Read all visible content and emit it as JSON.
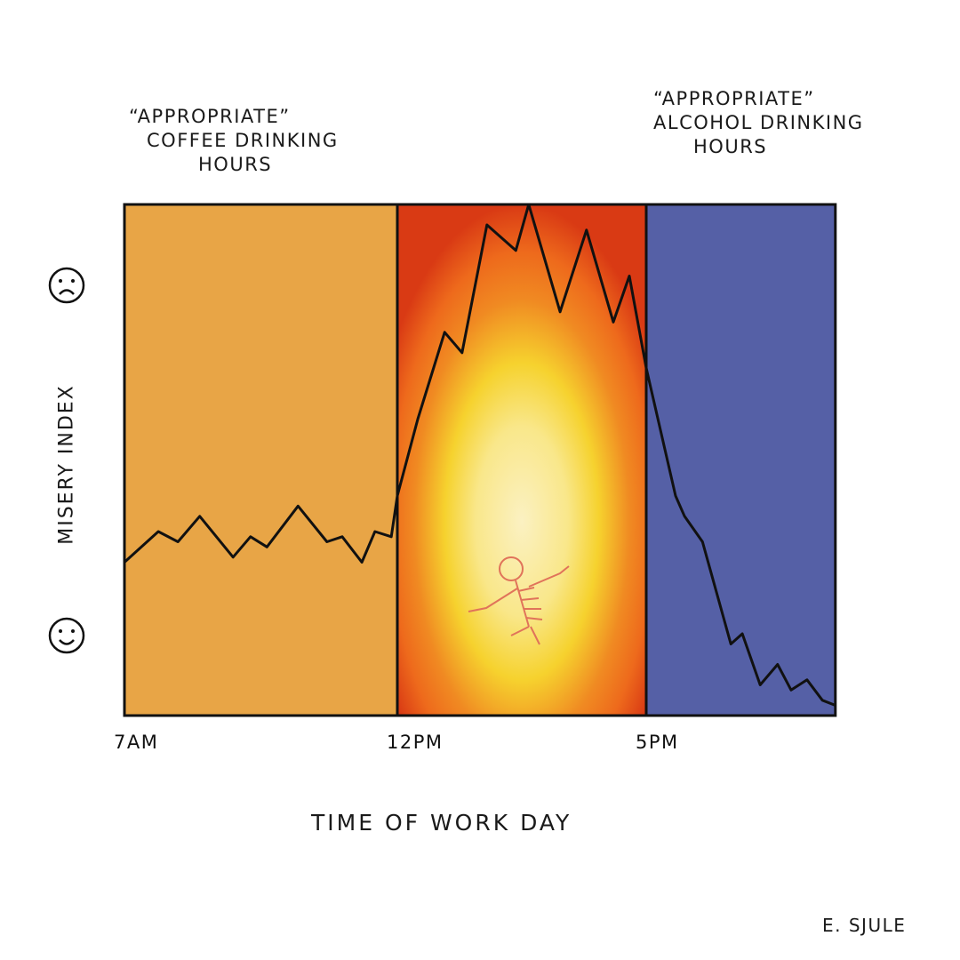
{
  "chart_data": {
    "type": "line",
    "title": "",
    "xlabel": "Time of work day",
    "ylabel": "Misery index",
    "xlim": [
      7,
      20.8
    ],
    "ylim": [
      0,
      100
    ],
    "x_ticks": [
      {
        "value": 7,
        "label": "7AM"
      },
      {
        "value": 12,
        "label": "12PM"
      },
      {
        "value": 17,
        "label": "5PM"
      }
    ],
    "y_axis_icons": [
      {
        "value": 80,
        "icon": "sad-face-icon"
      },
      {
        "value": 16,
        "icon": "happy-face-icon"
      }
    ],
    "regions": [
      {
        "name": "coffee",
        "from": 7,
        "to": 12,
        "color": "#E8A546",
        "label": "\"Appropriate\" coffee drinking hours"
      },
      {
        "name": "fire",
        "from": 12,
        "to": 17,
        "color": "#D93A14",
        "label": ""
      },
      {
        "name": "alcohol",
        "from": 17,
        "to": 20.8,
        "color": "#5560A6",
        "label": "\"Appropriate\" alcohol drinking hours"
      }
    ],
    "series": [
      {
        "name": "Misery",
        "x": [
          7.0,
          7.62,
          7.98,
          8.38,
          8.99,
          9.31,
          9.61,
          10.18,
          10.71,
          10.99,
          11.35,
          11.59,
          11.89,
          12.0,
          12.41,
          12.95,
          13.3,
          13.8,
          14.38,
          14.64,
          15.27,
          15.8,
          16.34,
          16.66,
          17.0,
          17.59,
          17.77,
          18.13,
          18.7,
          18.93,
          19.29,
          19.64,
          19.91,
          20.23,
          20.54,
          20.8
        ],
        "y": [
          30,
          36,
          34,
          39,
          31,
          35,
          33,
          41,
          34,
          35,
          30,
          36,
          35,
          43,
          58,
          75,
          71,
          96,
          91,
          100,
          79,
          95,
          77,
          86,
          68,
          43,
          39,
          34,
          14,
          16,
          6,
          10,
          5,
          7,
          3,
          2
        ]
      }
    ]
  },
  "annotations": {
    "coffee": [
      "“Appropriate”",
      "coffee drinking",
      "hours"
    ],
    "alcohol": [
      "“Appropriate”",
      "alcohol drinking",
      "hours"
    ]
  },
  "signature": "E. Sjule"
}
